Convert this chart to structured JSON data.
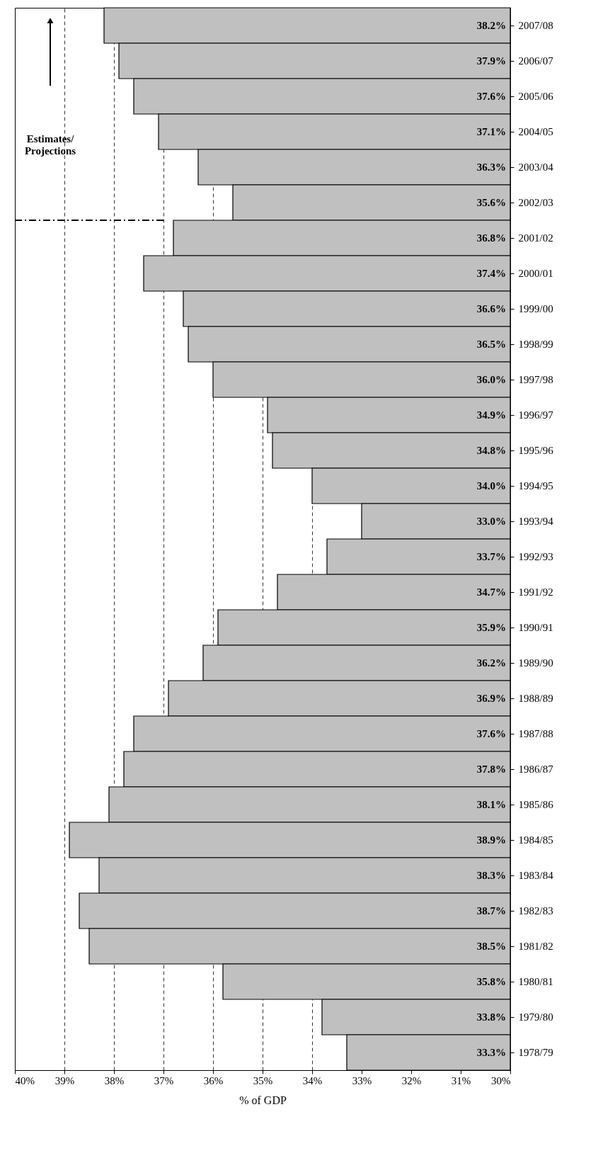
{
  "chart_data": {
    "type": "bar",
    "orientation": "horizontal",
    "xlabel": "% of GDP",
    "categories": [
      "2007/08",
      "2006/07",
      "2005/06",
      "2004/05",
      "2003/04",
      "2002/03",
      "2001/02",
      "2000/01",
      "1999/00",
      "1998/99",
      "1997/98",
      "1996/97",
      "1995/96",
      "1994/95",
      "1993/94",
      "1992/93",
      "1991/92",
      "1990/91",
      "1989/90",
      "1988/89",
      "1987/88",
      "1986/87",
      "1985/86",
      "1984/85",
      "1983/84",
      "1982/83",
      "1981/82",
      "1980/81",
      "1979/80",
      "1978/79"
    ],
    "values": [
      38.2,
      37.9,
      37.6,
      37.1,
      36.3,
      35.6,
      36.8,
      37.4,
      36.6,
      36.5,
      36.0,
      34.9,
      34.8,
      34.0,
      33.0,
      33.7,
      34.7,
      35.9,
      36.2,
      36.9,
      37.6,
      37.8,
      38.1,
      38.9,
      38.3,
      38.7,
      38.5,
      35.8,
      33.8,
      33.3
    ],
    "value_labels": [
      "38.2%",
      "37.9%",
      "37.6%",
      "37.1%",
      "36.3%",
      "35.6%",
      "36.8%",
      "37.4%",
      "36.6%",
      "36.5%",
      "36.0%",
      "34.9%",
      "34.8%",
      "34.0%",
      "33.0%",
      "33.7%",
      "34.7%",
      "35.9%",
      "36.2%",
      "36.9%",
      "37.6%",
      "37.8%",
      "38.1%",
      "38.9%",
      "38.3%",
      "38.7%",
      "38.5%",
      "35.8%",
      "33.8%",
      "33.3%"
    ],
    "color": "#c0c0c0",
    "xlim": [
      40,
      30
    ],
    "xticks": [
      {
        "value": 40,
        "label": "40%"
      },
      {
        "value": 39,
        "label": "39%"
      },
      {
        "value": 38,
        "label": "38%"
      },
      {
        "value": 37,
        "label": "37%"
      },
      {
        "value": 36,
        "label": "36%"
      },
      {
        "value": 35,
        "label": "35%"
      },
      {
        "value": 34,
        "label": "34%"
      },
      {
        "value": 33,
        "label": "33%"
      },
      {
        "value": 32,
        "label": "32%"
      },
      {
        "value": 31,
        "label": "31%"
      },
      {
        "value": 30,
        "label": "30%"
      }
    ],
    "grid": "x",
    "ref_lines": [
      {
        "axis": "y",
        "value": "2002/03",
        "line_style": "dashed",
        "color": "#000000"
      }
    ],
    "annotations": [
      "Estimates/ Projections"
    ]
  }
}
